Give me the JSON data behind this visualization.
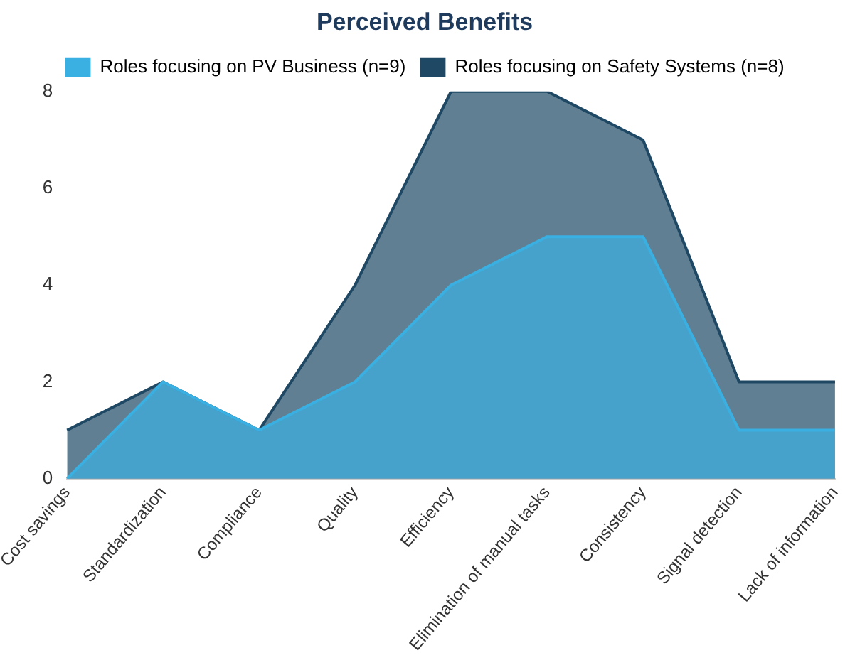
{
  "chart_data": {
    "type": "area",
    "title": "Perceived Benefits",
    "categories": [
      "Cost savings",
      "Standardization",
      "Compliance",
      "Quality",
      "Efficiency",
      "Elimination of manual tasks",
      "Consistency",
      "Signal detection",
      "Lack of information"
    ],
    "series": [
      {
        "name": "Roles focusing on PV Business (n=9)",
        "color": "#3ab0e2",
        "values": [
          0,
          2,
          1,
          2,
          4,
          5,
          5,
          1,
          1
        ]
      },
      {
        "name": "Roles focusing on Safety Systems (n=8)",
        "color": "#1e4864",
        "values": [
          1,
          2,
          1,
          4,
          8,
          8,
          7,
          2,
          2
        ]
      }
    ],
    "ylim": [
      0,
      8
    ],
    "yticks": [
      0,
      2,
      4,
      6,
      8
    ],
    "grid": false,
    "legend": "top",
    "marker": "none"
  }
}
